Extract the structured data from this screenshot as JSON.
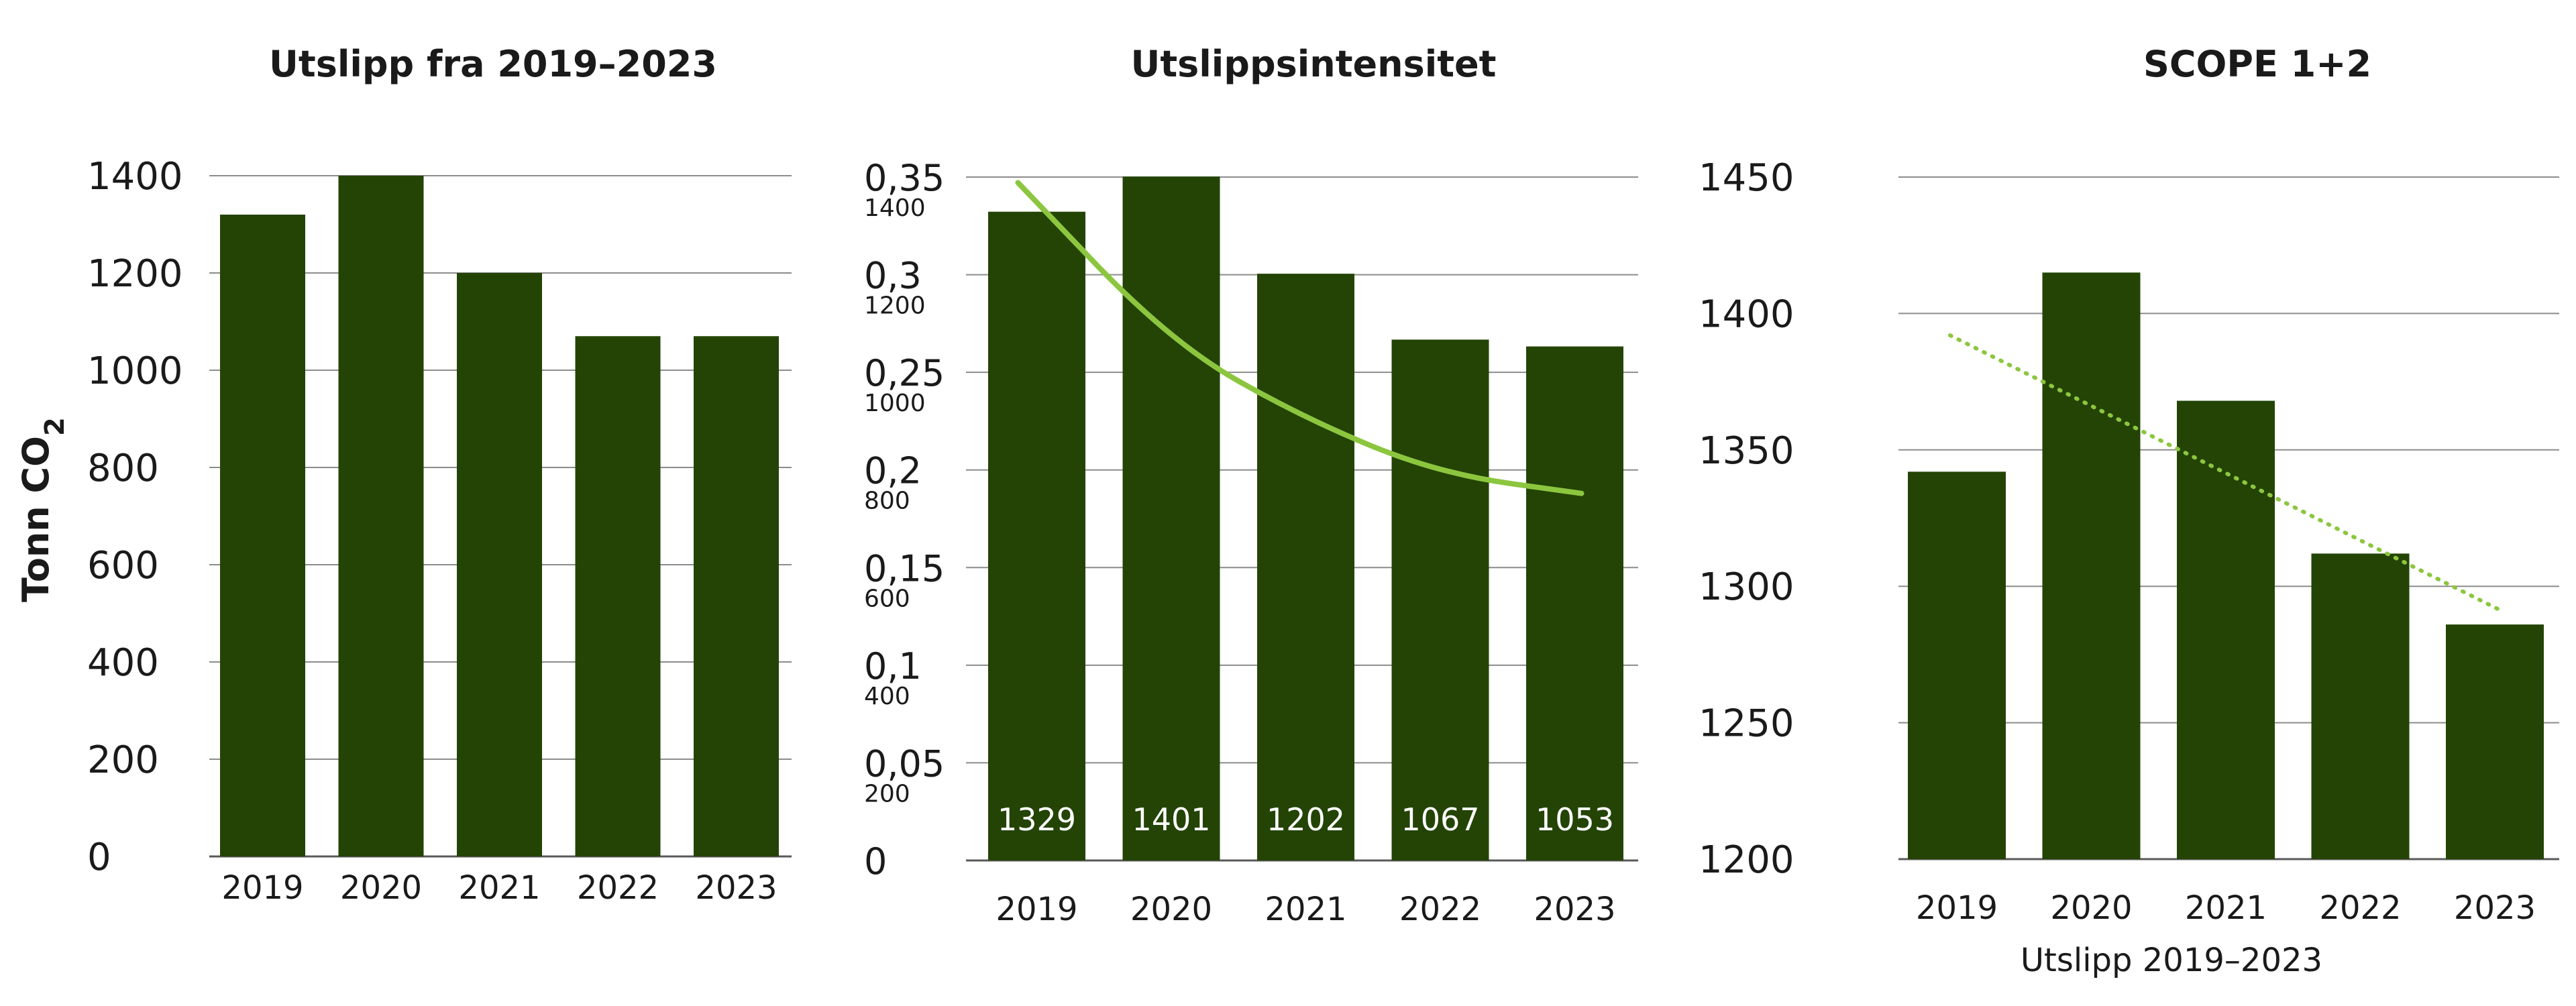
{
  "colors": {
    "bar": "#234405",
    "trend": "#8cc63f",
    "grid": "#8c8c8c",
    "axis": "#595959",
    "text": "#1a1a1a"
  },
  "y_axis_label": "Tonn CO",
  "y_axis_label_sub": "2",
  "chart_data": [
    {
      "type": "bar",
      "title": "Utslipp fra 2019–2023",
      "categories": [
        "2019",
        "2020",
        "2021",
        "2022",
        "2023"
      ],
      "values": [
        1320,
        1400,
        1200,
        1070,
        1070
      ],
      "ylim": [
        0,
        1400
      ],
      "yticks": [
        0,
        200,
        400,
        600,
        800,
        1000,
        1200,
        1400
      ],
      "ytick_labels": [
        "0",
        "200",
        "400",
        "600",
        "800",
        "1000",
        "1200",
        "1400"
      ],
      "grid": true,
      "legend": "none"
    },
    {
      "type": "bar",
      "title": "Utslippsintensitet",
      "categories": [
        "2019",
        "2020",
        "2021",
        "2022",
        "2023"
      ],
      "values": [
        1329,
        1401,
        1202,
        1067,
        1053
      ],
      "data_labels": [
        "1329",
        "1401",
        "1202",
        "1067",
        "1053"
      ],
      "ylim": [
        0,
        1400
      ],
      "secondary_ylim": [
        0,
        0.35
      ],
      "yticks_primary": [
        0,
        0.05,
        0.1,
        0.15,
        0.2,
        0.25,
        0.3,
        0.35
      ],
      "ytick_labels_primary": [
        "0",
        "0,05",
        "0,1",
        "0,15",
        "0,2",
        "0,25",
        "0,3",
        "0,35"
      ],
      "yticks_secondary": [
        200,
        400,
        600,
        800,
        1000,
        1200,
        1400
      ],
      "ytick_labels_secondary": [
        "200",
        "400",
        "600",
        "800",
        "1000",
        "1200",
        "1400"
      ],
      "trend": {
        "type": "line",
        "style": "solid",
        "values": [
          0.343,
          0.265,
          0.226,
          0.198,
          0.188
        ]
      },
      "grid": true,
      "legend": "none"
    },
    {
      "type": "bar",
      "title": "SCOPE 1+2",
      "categories": [
        "2019",
        "2020",
        "2021",
        "2022",
        "2023"
      ],
      "values": [
        1342,
        1415,
        1368,
        1312,
        1286
      ],
      "ylim": [
        1200,
        1450
      ],
      "yticks": [
        1200,
        1250,
        1300,
        1350,
        1400,
        1450
      ],
      "ytick_labels": [
        "1200",
        "1250",
        "1300",
        "1350",
        "1400",
        "1450"
      ],
      "xlabel": "Utslipp 2019–2023",
      "trend": {
        "type": "line",
        "style": "dotted",
        "values": [
          1391,
          1367,
          1342,
          1316,
          1292
        ]
      },
      "grid": true,
      "legend": "none"
    }
  ]
}
